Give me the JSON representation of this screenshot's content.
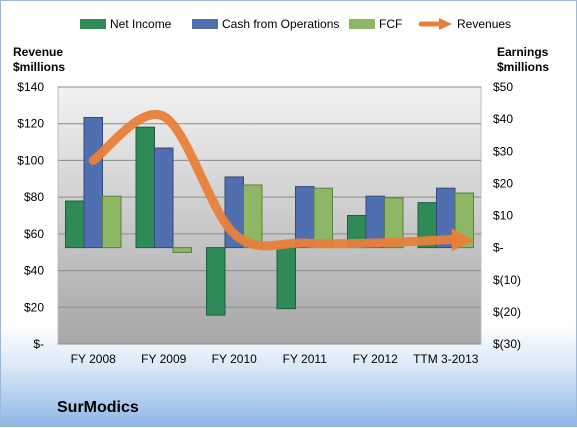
{
  "company": "SurModics",
  "left_axis_title": [
    "Revenue",
    "$millions"
  ],
  "right_axis_title": [
    "Earnings",
    "$millions"
  ],
  "colors": {
    "net_income": "#2e8b57",
    "cash_from_operations": "#4f6fb0",
    "fcf": "#8db665",
    "revenues": "#e8803a"
  },
  "chart_data": {
    "type": "bar",
    "categories": [
      "FY 2008",
      "FY 2009",
      "FY 2010",
      "FY 2011",
      "FY 2012",
      "TTM 3-2013"
    ],
    "left_axis": {
      "label": "Revenue $millions",
      "range": [
        0,
        140
      ],
      "ticks": [
        "$-",
        "$20",
        "$40",
        "$60",
        "$80",
        "$100",
        "$120",
        "$140"
      ]
    },
    "right_axis": {
      "label": "Earnings $millions",
      "range": [
        -30,
        50
      ],
      "ticks": [
        "$(30)",
        "$(20)",
        "$(10)",
        "$-",
        "$10",
        "$20",
        "$30",
        "$40",
        "$50"
      ]
    },
    "series": [
      {
        "name": "Net Income",
        "type": "bar",
        "axis": "right",
        "values": [
          14.5,
          37.5,
          -21,
          -19,
          10,
          14
        ]
      },
      {
        "name": "Cash from Operations",
        "type": "bar",
        "axis": "right",
        "values": [
          40.5,
          31,
          22,
          19,
          16,
          18.5
        ]
      },
      {
        "name": "FCF",
        "type": "bar",
        "axis": "right",
        "values": [
          16,
          -1.5,
          19.5,
          18.5,
          15.5,
          17
        ]
      },
      {
        "name": "Revenues",
        "type": "line",
        "axis": "left",
        "values": [
          100,
          124,
          60,
          55,
          55,
          57
        ]
      }
    ],
    "grid": true,
    "legend": "top"
  }
}
